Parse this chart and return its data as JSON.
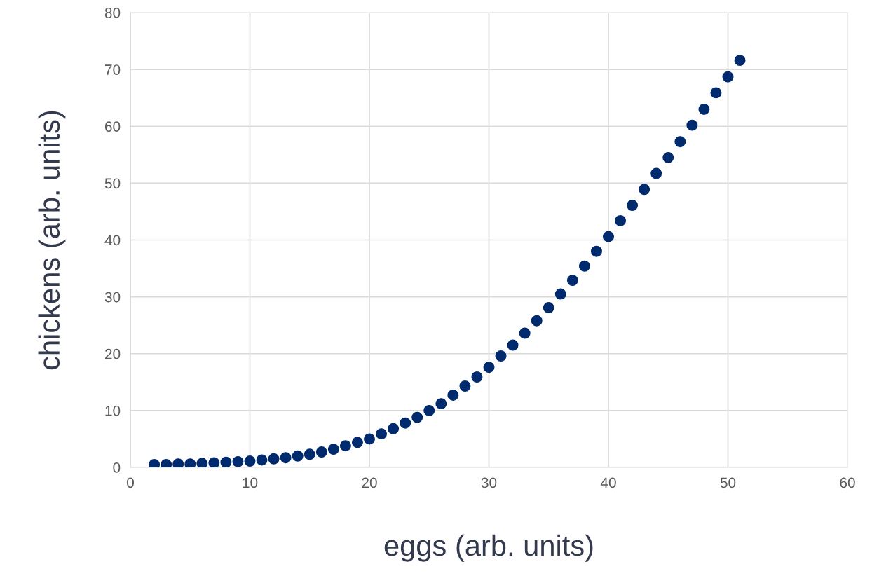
{
  "chart_data": {
    "type": "scatter",
    "xlabel": "eggs (arb. units)",
    "ylabel": "chickens (arb. units)",
    "x": [
      2,
      3,
      4,
      5,
      6,
      7,
      8,
      9,
      10,
      11,
      12,
      13,
      14,
      15,
      16,
      17,
      18,
      19,
      20,
      21,
      22,
      23,
      24,
      25,
      26,
      27,
      28,
      29,
      30,
      31,
      32,
      33,
      34,
      35,
      36,
      37,
      38,
      39,
      40,
      41,
      42,
      43,
      44,
      45,
      46,
      47,
      48,
      49,
      50,
      51
    ],
    "series": [
      {
        "color": "#002a6e",
        "values": [
          0.5,
          0.5,
          0.6,
          0.6,
          0.7,
          0.8,
          0.9,
          1.0,
          1.1,
          1.3,
          1.5,
          1.7,
          2.0,
          2.3,
          2.7,
          3.2,
          3.8,
          4.4,
          5.0,
          5.9,
          6.8,
          7.8,
          8.8,
          10.0,
          11.2,
          12.7,
          14.3,
          15.9,
          17.6,
          19.6,
          21.5,
          23.6,
          25.8,
          28.1,
          30.5,
          32.9,
          35.4,
          38.0,
          40.6,
          43.4,
          46.1,
          48.9,
          51.7,
          54.5,
          57.3,
          60.2,
          63.0,
          65.9,
          68.7,
          71.6
        ]
      }
    ],
    "xlim": [
      0,
      60
    ],
    "ylim": [
      0,
      80
    ],
    "xticks": [
      0,
      10,
      20,
      30,
      40,
      50,
      60
    ],
    "yticks": [
      0,
      10,
      20,
      30,
      40,
      50,
      60,
      70,
      80
    ],
    "grid": true,
    "marker": "circle"
  }
}
